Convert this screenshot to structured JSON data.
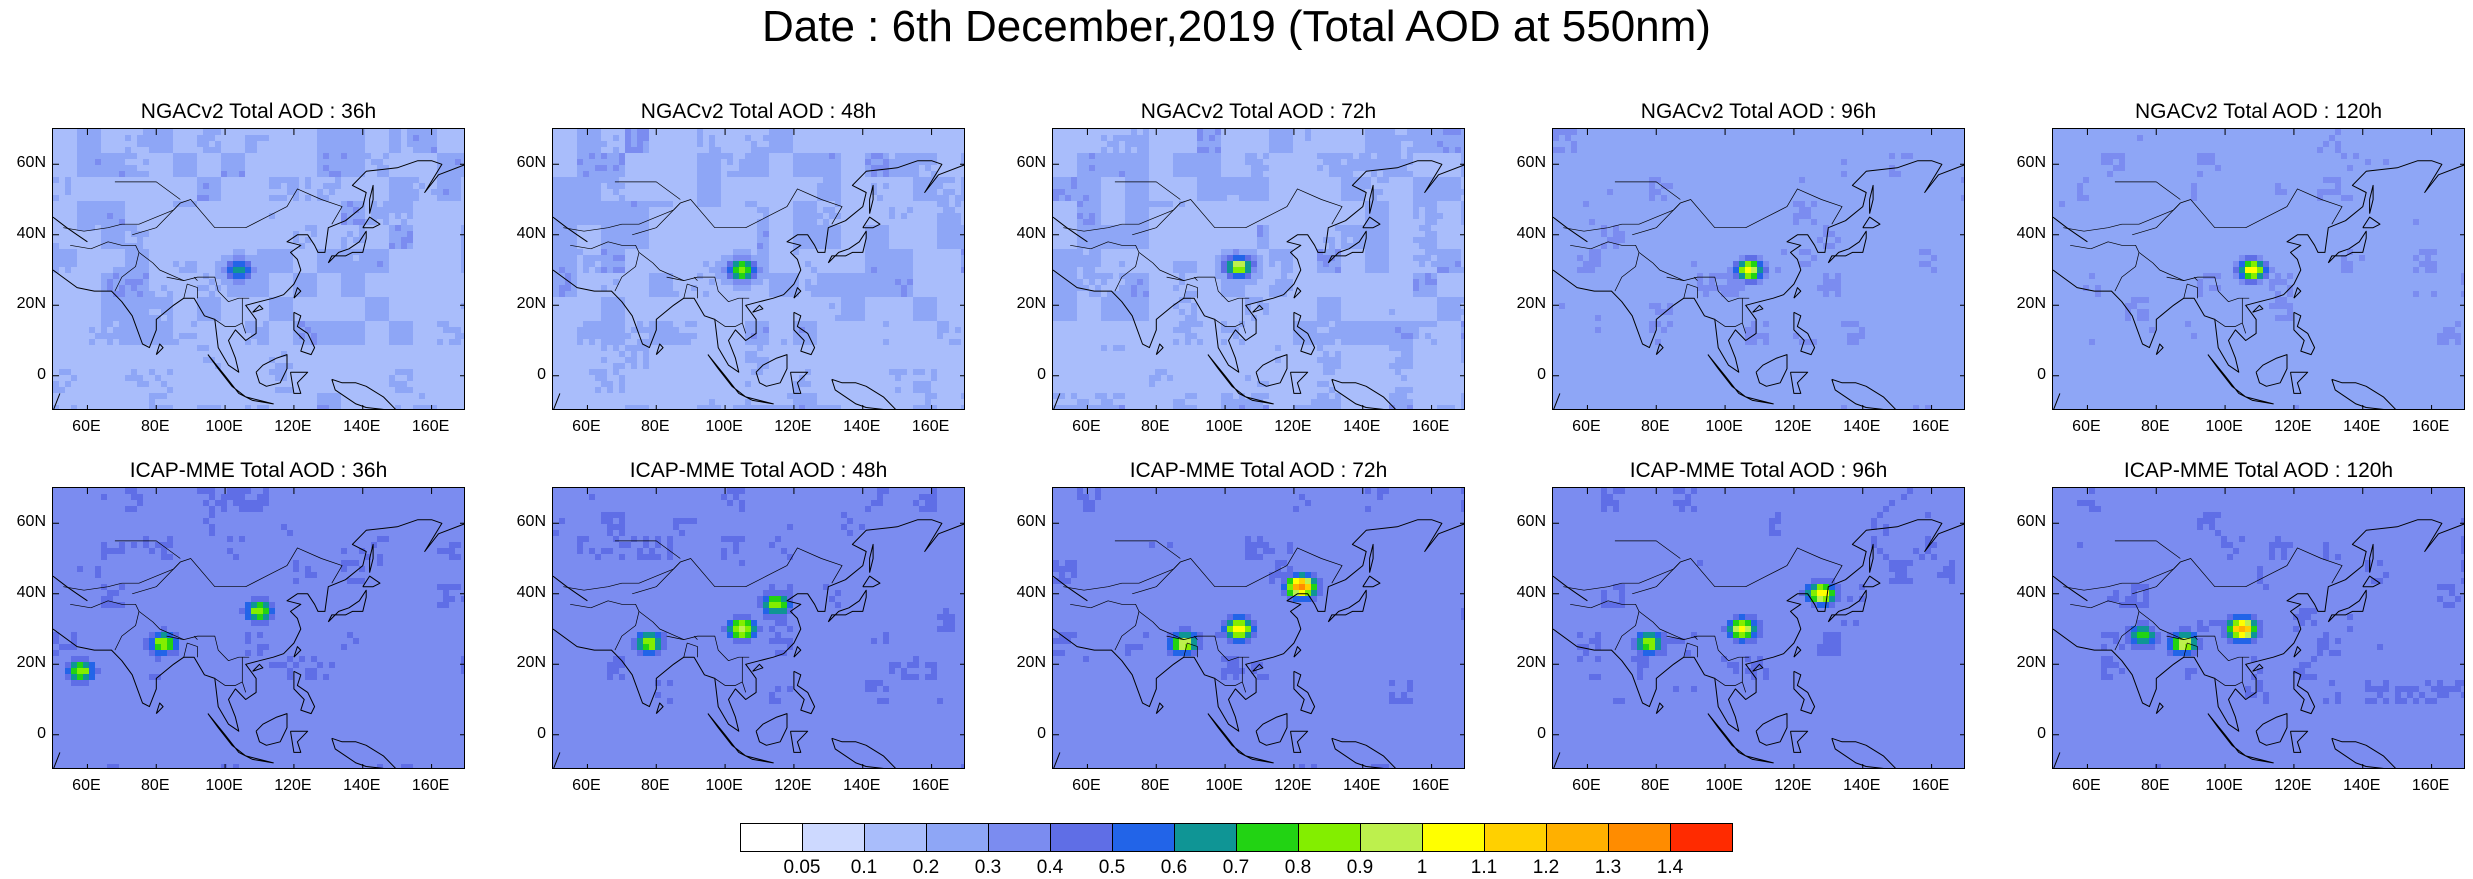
{
  "title": "Date : 6th December,2019 (Total AOD at 550nm)",
  "axes": {
    "y_ticks": [
      {
        "label": "60N",
        "lat": 60
      },
      {
        "label": "40N",
        "lat": 40
      },
      {
        "label": "20N",
        "lat": 20
      },
      {
        "label": "0",
        "lat": 0
      }
    ],
    "x_ticks": [
      {
        "label": "60E",
        "lon": 60
      },
      {
        "label": "80E",
        "lon": 80
      },
      {
        "label": "100E",
        "lon": 100
      },
      {
        "label": "120E",
        "lon": 120
      },
      {
        "label": "140E",
        "lon": 140
      },
      {
        "label": "160E",
        "lon": 160
      }
    ],
    "lon_range": [
      50,
      170
    ],
    "lat_range": [
      -10,
      70
    ]
  },
  "colorbar": {
    "colors": [
      "#ffffff",
      "#cdd9ff",
      "#a9bdfb",
      "#8ea6f6",
      "#7b8cf0",
      "#5f6ee6",
      "#2264e8",
      "#0f9595",
      "#22d313",
      "#83ee00",
      "#bdf04d",
      "#ffff00",
      "#ffd000",
      "#ffb000",
      "#ff8c00",
      "#ff2b00"
    ],
    "labels": [
      "0.05",
      "0.1",
      "0.2",
      "0.3",
      "0.4",
      "0.5",
      "0.6",
      "0.7",
      "0.8",
      "0.9",
      "1",
      "1.1",
      "1.2",
      "1.3",
      "1.4"
    ]
  },
  "panels": [
    {
      "title": "NGACv2 Total AOD : 36h"
    },
    {
      "title": "NGACv2 Total AOD : 48h"
    },
    {
      "title": "NGACv2 Total AOD : 72h"
    },
    {
      "title": "NGACv2 Total AOD : 96h"
    },
    {
      "title": "NGACv2 Total AOD : 120h"
    },
    {
      "title": "ICAP-MME Total AOD : 36h"
    },
    {
      "title": "ICAP-MME Total AOD : 48h"
    },
    {
      "title": "ICAP-MME Total AOD : 72h"
    },
    {
      "title": "ICAP-MME Total AOD : 96h"
    },
    {
      "title": "ICAP-MME Total AOD : 120h"
    }
  ],
  "chart_data": {
    "type": "heatmap",
    "title": "Date : 6th December,2019 (Total AOD at 550nm)",
    "variable": "Total AOD at 550nm",
    "x_domain_lon": [
      50,
      170
    ],
    "y_domain_lat": [
      -10,
      70
    ],
    "color_levels": [
      0.05,
      0.1,
      0.2,
      0.3,
      0.4,
      0.5,
      0.6,
      0.7,
      0.8,
      0.9,
      1,
      1.1,
      1.2,
      1.3,
      1.4
    ],
    "maps": [
      {
        "panel": 0,
        "background": 0.18,
        "hotspots": [
          {
            "lon": 104,
            "lat": 30,
            "aod": 0.7
          }
        ]
      },
      {
        "panel": 1,
        "background": 0.18,
        "hotspots": [
          {
            "lon": 105,
            "lat": 30,
            "aod": 0.9
          }
        ]
      },
      {
        "panel": 2,
        "background": 0.18,
        "hotspots": [
          {
            "lon": 104,
            "lat": 31,
            "aod": 1.0
          }
        ]
      },
      {
        "panel": 3,
        "background": 0.2,
        "hotspots": [
          {
            "lon": 107,
            "lat": 30,
            "aod": 1.1
          }
        ]
      },
      {
        "panel": 4,
        "background": 0.2,
        "hotspots": [
          {
            "lon": 108,
            "lat": 30,
            "aod": 1.1
          }
        ]
      },
      {
        "panel": 5,
        "background": 0.3,
        "hotspots": [
          {
            "lon": 110,
            "lat": 35,
            "aod": 0.9
          },
          {
            "lon": 82,
            "lat": 26,
            "aod": 0.9
          },
          {
            "lon": 58,
            "lat": 18,
            "aod": 0.9
          }
        ]
      },
      {
        "panel": 6,
        "background": 0.3,
        "hotspots": [
          {
            "lon": 115,
            "lat": 37,
            "aod": 0.9
          },
          {
            "lon": 78,
            "lat": 26,
            "aod": 0.9
          },
          {
            "lon": 105,
            "lat": 30,
            "aod": 1.0
          }
        ]
      },
      {
        "panel": 7,
        "background": 0.3,
        "hotspots": [
          {
            "lon": 122,
            "lat": 42,
            "aod": 1.4
          },
          {
            "lon": 88,
            "lat": 26,
            "aod": 1.0
          },
          {
            "lon": 104,
            "lat": 30,
            "aod": 1.1
          }
        ]
      },
      {
        "panel": 8,
        "background": 0.3,
        "hotspots": [
          {
            "lon": 128,
            "lat": 40,
            "aod": 1.1
          },
          {
            "lon": 78,
            "lat": 26,
            "aod": 0.9
          },
          {
            "lon": 105,
            "lat": 30,
            "aod": 1.1
          }
        ]
      },
      {
        "panel": 9,
        "background": 0.3,
        "hotspots": [
          {
            "lon": 105,
            "lat": 30,
            "aod": 1.3
          },
          {
            "lon": 88,
            "lat": 26,
            "aod": 1.0
          },
          {
            "lon": 76,
            "lat": 28,
            "aod": 0.8
          }
        ]
      }
    ]
  }
}
